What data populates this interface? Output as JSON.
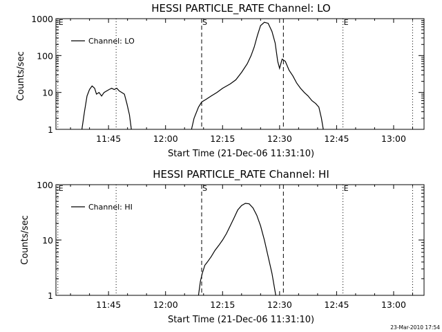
{
  "chart_data": [
    {
      "type": "line",
      "title": "HESSI PARTICLE_RATE Channel: LO",
      "xlabel": "Start Time (21-Dec-06 11:31:10)",
      "ylabel": "Counts/sec",
      "ylog": true,
      "ylim": [
        1,
        1000
      ],
      "yticks": [
        {
          "v": 1,
          "label": "1"
        },
        {
          "v": 10,
          "label": "10"
        },
        {
          "v": 100,
          "label": "100"
        },
        {
          "v": 1000,
          "label": "1000"
        }
      ],
      "xlim": [
        "11:31:10",
        "13:08:00"
      ],
      "xticks": [
        "11:45",
        "12:00",
        "12:15",
        "12:30",
        "12:45",
        "13:00"
      ],
      "markers": [
        {
          "t": "11:31:40",
          "label": "E",
          "style": "dotted"
        },
        {
          "t": "11:47:00",
          "style": "dotted"
        },
        {
          "t": "12:09:30",
          "label": "S",
          "style": "dashed"
        },
        {
          "t": "12:31:00",
          "style": "dashed"
        },
        {
          "t": "12:46:40",
          "label": "E",
          "style": "dotted"
        },
        {
          "t": "13:05:00",
          "style": "dotted"
        }
      ],
      "legend": {
        "position": "top-left",
        "entries": [
          "Channel: LO"
        ]
      },
      "series": [
        {
          "name": "Channel: LO",
          "segments": [
            [
              [
                "11:38:00",
                1
              ],
              [
                "11:38:40",
                3
              ],
              [
                "11:39:20",
                8
              ],
              [
                "11:40:00",
                12
              ],
              [
                "11:40:40",
                15
              ],
              [
                "11:41:20",
                13
              ],
              [
                "11:41:50",
                9
              ],
              [
                "11:42:30",
                10
              ],
              [
                "11:43:10",
                8
              ],
              [
                "11:43:50",
                10
              ],
              [
                "11:44:30",
                11
              ],
              [
                "11:45:10",
                12
              ],
              [
                "11:45:50",
                13
              ],
              [
                "11:46:30",
                12
              ],
              [
                "11:47:10",
                13
              ],
              [
                "11:47:50",
                11
              ],
              [
                "11:48:30",
                10
              ],
              [
                "11:49:10",
                9
              ],
              [
                "11:49:50",
                5
              ],
              [
                "11:50:30",
                2.5
              ],
              [
                "11:51:00",
                1
              ]
            ],
            [
              [
                "12:06:50",
                1
              ],
              [
                "12:07:30",
                2
              ],
              [
                "12:08:40",
                4
              ],
              [
                "12:09:30",
                5.5
              ],
              [
                "12:10:40",
                6.5
              ],
              [
                "12:12:00",
                8
              ],
              [
                "12:13:30",
                10
              ],
              [
                "12:15:00",
                13
              ],
              [
                "12:17:00",
                17
              ],
              [
                "12:18:30",
                22
              ],
              [
                "12:20:00",
                35
              ],
              [
                "12:21:30",
                60
              ],
              [
                "12:22:30",
                100
              ],
              [
                "12:23:20",
                170
              ],
              [
                "12:24:10",
                350
              ],
              [
                "12:25:00",
                650
              ],
              [
                "12:26:00",
                800
              ],
              [
                "12:27:00",
                750
              ],
              [
                "12:28:00",
                450
              ],
              [
                "12:28:50",
                220
              ],
              [
                "12:29:30",
                70
              ],
              [
                "12:30:00",
                45
              ],
              [
                "12:30:40",
                80
              ],
              [
                "12:31:30",
                70
              ],
              [
                "12:32:30",
                40
              ],
              [
                "12:33:30",
                28
              ],
              [
                "12:34:30",
                18
              ],
              [
                "12:35:30",
                13
              ],
              [
                "12:36:30",
                10
              ],
              [
                "12:37:30",
                8
              ],
              [
                "12:38:30",
                6
              ],
              [
                "12:39:30",
                5
              ],
              [
                "12:40:20",
                4
              ],
              [
                "12:41:00",
                2
              ],
              [
                "12:41:30",
                1
              ]
            ]
          ]
        }
      ]
    },
    {
      "type": "line",
      "title": "HESSI PARTICLE_RATE Channel: HI",
      "xlabel": "Start Time (21-Dec-06 11:31:10)",
      "ylabel": "Counts/sec",
      "ylog": true,
      "ylim": [
        1,
        100
      ],
      "yticks": [
        {
          "v": 1,
          "label": "1"
        },
        {
          "v": 10,
          "label": "10"
        },
        {
          "v": 100,
          "label": "100"
        }
      ],
      "xlim": [
        "11:31:10",
        "13:08:00"
      ],
      "xticks": [
        "11:45",
        "12:00",
        "12:15",
        "12:30",
        "12:45",
        "13:00"
      ],
      "markers": [
        {
          "t": "11:31:40",
          "label": "E",
          "style": "dotted"
        },
        {
          "t": "11:47:00",
          "style": "dotted"
        },
        {
          "t": "12:09:30",
          "label": "S",
          "style": "dashed"
        },
        {
          "t": "12:31:00",
          "style": "dashed"
        },
        {
          "t": "12:46:40",
          "label": "E",
          "style": "dotted"
        },
        {
          "t": "13:05:00",
          "style": "dotted"
        }
      ],
      "legend": {
        "position": "top-left",
        "entries": [
          "Channel: HI"
        ]
      },
      "series": [
        {
          "name": "Channel: HI",
          "segments": [
            [
              [
                "12:08:40",
                1
              ],
              [
                "12:09:10",
                1.8
              ],
              [
                "12:09:40",
                2.5
              ],
              [
                "12:10:20",
                3.5
              ],
              [
                "12:11:00",
                4
              ],
              [
                "12:12:00",
                5
              ],
              [
                "12:13:00",
                6.5
              ],
              [
                "12:14:00",
                8
              ],
              [
                "12:15:00",
                10
              ],
              [
                "12:16:00",
                13
              ],
              [
                "12:17:00",
                18
              ],
              [
                "12:18:00",
                25
              ],
              [
                "12:19:00",
                35
              ],
              [
                "12:20:00",
                42
              ],
              [
                "12:21:00",
                46
              ],
              [
                "12:22:00",
                45
              ],
              [
                "12:23:00",
                38
              ],
              [
                "12:24:00",
                28
              ],
              [
                "12:25:00",
                18
              ],
              [
                "12:26:00",
                10
              ],
              [
                "12:27:00",
                5
              ],
              [
                "12:28:00",
                2.5
              ],
              [
                "12:29:00",
                1
              ]
            ]
          ]
        }
      ]
    }
  ],
  "footer": {
    "timestamp": "23-Mar-2010 17:54"
  }
}
